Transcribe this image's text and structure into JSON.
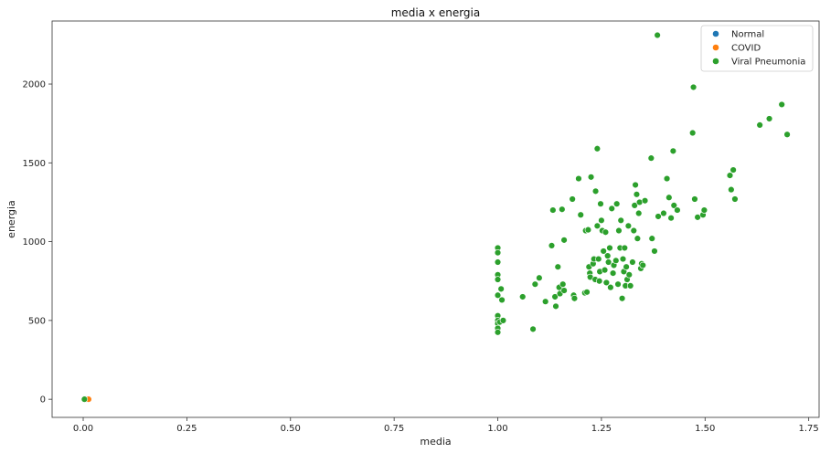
{
  "chart_data": {
    "type": "scatter",
    "title": "media x energia",
    "xlabel": "media",
    "ylabel": "energia",
    "xlim": [
      -0.075,
      1.775
    ],
    "ylim": [
      -115,
      2400
    ],
    "xticks": [
      0.0,
      0.25,
      0.5,
      0.75,
      1.0,
      1.25,
      1.5,
      1.75
    ],
    "xtick_labels": [
      "0.00",
      "0.25",
      "0.50",
      "0.75",
      "1.00",
      "1.25",
      "1.50",
      "1.75"
    ],
    "yticks": [
      0,
      500,
      1000,
      1500,
      2000
    ],
    "ytick_labels": [
      "0",
      "500",
      "1000",
      "1500",
      "2000"
    ],
    "grid": false,
    "legend_position": "top-right",
    "series": [
      {
        "name": "Normal",
        "color": "#1f77b4",
        "points": [
          [
            0.003,
            0
          ],
          [
            0.006,
            0
          ]
        ]
      },
      {
        "name": "COVID",
        "color": "#ff7f0e",
        "points": [
          [
            0.013,
            0
          ]
        ]
      },
      {
        "name": "Viral Pneumonia",
        "color": "#2ca02c",
        "points": [
          [
            0.003,
            0
          ],
          [
            1.0,
            960
          ],
          [
            1.0,
            930
          ],
          [
            1.0,
            870
          ],
          [
            1.0,
            790
          ],
          [
            1.0,
            760
          ],
          [
            1.0,
            660
          ],
          [
            1.0,
            530
          ],
          [
            1.0,
            500
          ],
          [
            1.0,
            480
          ],
          [
            1.0,
            450
          ],
          [
            1.0,
            425
          ],
          [
            1.005,
            490
          ],
          [
            1.008,
            700
          ],
          [
            1.01,
            630
          ],
          [
            1.013,
            500
          ],
          [
            1.06,
            650
          ],
          [
            1.085,
            445
          ],
          [
            1.09,
            730
          ],
          [
            1.1,
            770
          ],
          [
            1.115,
            620
          ],
          [
            1.13,
            975
          ],
          [
            1.133,
            1200
          ],
          [
            1.138,
            650
          ],
          [
            1.14,
            590
          ],
          [
            1.145,
            840
          ],
          [
            1.148,
            710
          ],
          [
            1.15,
            670
          ],
          [
            1.155,
            1205
          ],
          [
            1.157,
            730
          ],
          [
            1.16,
            1010
          ],
          [
            1.16,
            690
          ],
          [
            1.18,
            1270
          ],
          [
            1.183,
            660
          ],
          [
            1.185,
            640
          ],
          [
            1.195,
            1400
          ],
          [
            1.2,
            1170
          ],
          [
            1.21,
            675
          ],
          [
            1.212,
            1070
          ],
          [
            1.215,
            680
          ],
          [
            1.218,
            1075
          ],
          [
            1.22,
            840
          ],
          [
            1.222,
            800
          ],
          [
            1.223,
            775
          ],
          [
            1.225,
            1410
          ],
          [
            1.23,
            860
          ],
          [
            1.232,
            890
          ],
          [
            1.235,
            760
          ],
          [
            1.236,
            1320
          ],
          [
            1.24,
            1590
          ],
          [
            1.24,
            1100
          ],
          [
            1.243,
            890
          ],
          [
            1.245,
            750
          ],
          [
            1.246,
            810
          ],
          [
            1.248,
            1240
          ],
          [
            1.25,
            1135
          ],
          [
            1.252,
            1070
          ],
          [
            1.255,
            940
          ],
          [
            1.258,
            820
          ],
          [
            1.26,
            1060
          ],
          [
            1.262,
            740
          ],
          [
            1.265,
            910
          ],
          [
            1.267,
            870
          ],
          [
            1.27,
            960
          ],
          [
            1.272,
            710
          ],
          [
            1.275,
            1210
          ],
          [
            1.278,
            800
          ],
          [
            1.28,
            850
          ],
          [
            1.285,
            880
          ],
          [
            1.287,
            1240
          ],
          [
            1.29,
            730
          ],
          [
            1.292,
            1070
          ],
          [
            1.295,
            960
          ],
          [
            1.297,
            1135
          ],
          [
            1.3,
            640
          ],
          [
            1.302,
            890
          ],
          [
            1.304,
            810
          ],
          [
            1.306,
            960
          ],
          [
            1.308,
            720
          ],
          [
            1.31,
            840
          ],
          [
            1.312,
            760
          ],
          [
            1.315,
            1100
          ],
          [
            1.317,
            790
          ],
          [
            1.32,
            720
          ],
          [
            1.325,
            870
          ],
          [
            1.328,
            1070
          ],
          [
            1.33,
            1230
          ],
          [
            1.332,
            1360
          ],
          [
            1.335,
            1300
          ],
          [
            1.337,
            1020
          ],
          [
            1.34,
            1180
          ],
          [
            1.342,
            1250
          ],
          [
            1.345,
            830
          ],
          [
            1.347,
            860
          ],
          [
            1.35,
            850
          ],
          [
            1.355,
            1260
          ],
          [
            1.37,
            1530
          ],
          [
            1.372,
            1020
          ],
          [
            1.378,
            940
          ],
          [
            1.385,
            2310
          ],
          [
            1.387,
            1160
          ],
          [
            1.4,
            1180
          ],
          [
            1.408,
            1400
          ],
          [
            1.413,
            1280
          ],
          [
            1.418,
            1150
          ],
          [
            1.423,
            1575
          ],
          [
            1.425,
            1230
          ],
          [
            1.433,
            1200
          ],
          [
            1.47,
            1690
          ],
          [
            1.472,
            1980
          ],
          [
            1.475,
            1270
          ],
          [
            1.482,
            1155
          ],
          [
            1.495,
            1170
          ],
          [
            1.498,
            1200
          ],
          [
            1.56,
            1420
          ],
          [
            1.563,
            1330
          ],
          [
            1.568,
            1455
          ],
          [
            1.572,
            1270
          ],
          [
            1.632,
            1740
          ],
          [
            1.655,
            1780
          ],
          [
            1.685,
            1870
          ],
          [
            1.698,
            1680
          ]
        ]
      }
    ]
  }
}
